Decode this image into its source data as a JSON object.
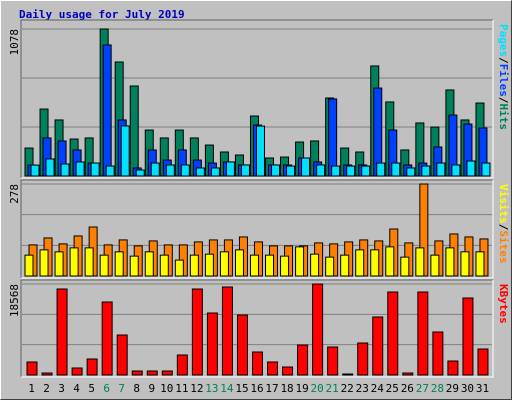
{
  "chart_data": {
    "type": "bar",
    "title": "Daily usage for July 2019",
    "categories": [
      "1",
      "2",
      "3",
      "4",
      "5",
      "6",
      "7",
      "8",
      "9",
      "10",
      "11",
      "12",
      "13",
      "14",
      "15",
      "16",
      "17",
      "18",
      "19",
      "20",
      "21",
      "22",
      "23",
      "24",
      "25",
      "26",
      "27",
      "28",
      "29",
      "30",
      "31"
    ],
    "category_colors": [
      "#000000",
      "#000000",
      "#000000",
      "#000000",
      "#000000",
      "#00805c",
      "#00805c",
      "#000000",
      "#000000",
      "#000000",
      "#000000",
      "#000000",
      "#00805c",
      "#00805c",
      "#000000",
      "#000000",
      "#000000",
      "#000000",
      "#000000",
      "#00805c",
      "#00805c",
      "#000000",
      "#000000",
      "#000000",
      "#000000",
      "#000000",
      "#00805c",
      "#00805c",
      "#000000",
      "#000000",
      "#000000"
    ],
    "legend_separator": "/",
    "panels": [
      {
        "ylim": [
          0,
          1078
        ],
        "yticks": [
          1078
        ],
        "series": [
          {
            "name": "Hits",
            "color": "#00805c",
            "values": [
              205,
              491,
              411,
              271,
              279,
              1078,
              836,
              660,
              337,
              279,
              337,
              279,
              227,
              176,
              154,
              440,
              132,
              139,
              249,
              257,
              572,
              205,
              176,
              807,
              543,
              191,
              389,
              359,
              631,
              411,
              535
            ]
          },
          {
            "name": "Files",
            "color": "#0040ff",
            "values": [
              80,
              279,
              257,
              191,
              95,
              961,
              411,
              59,
              191,
              117,
              191,
              117,
              95,
              103,
              81,
              374,
              81,
              81,
              132,
              103,
              565,
              81,
              81,
              645,
              337,
              81,
              95,
              213,
              447,
              381,
              352
            ]
          },
          {
            "name": "Pages",
            "color": "#00e0ff",
            "values": [
              80,
              125,
              88,
              103,
              95,
              73,
              367,
              44,
              95,
              81,
              81,
              59,
              59,
              103,
              81,
              366,
              81,
              73,
              132,
              81,
              73,
              73,
              73,
              95,
              95,
              59,
              73,
              95,
              81,
              110,
              95
            ]
          }
        ]
      },
      {
        "ylim": [
          0,
          278
        ],
        "yticks": [
          278
        ],
        "series": [
          {
            "name": "Sites",
            "color": "#ff8000",
            "values": [
              94,
              115,
              97,
              121,
              148,
              94,
              109,
              91,
              106,
              94,
              94,
              103,
              109,
              109,
              118,
              103,
              91,
              91,
              91,
              100,
              97,
              103,
              109,
              106,
              142,
              100,
              278,
              106,
              127,
              118,
              112
            ]
          },
          {
            "name": "Visits",
            "color": "#ffff00",
            "values": [
              63,
              79,
              73,
              85,
              85,
              63,
              73,
              60,
              73,
              63,
              48,
              63,
              66,
              73,
              79,
              63,
              63,
              60,
              88,
              66,
              57,
              63,
              79,
              79,
              88,
              57,
              85,
              63,
              85,
              73,
              73
            ]
          }
        ]
      },
      {
        "ylim": [
          0,
          18568
        ],
        "yticks": [
          18568
        ],
        "series": [
          {
            "name": "KBytes",
            "color": "#ff0000",
            "values": [
              2653,
              408,
              17548,
              1428,
              3265,
              14895,
              8162,
              816,
              816,
              816,
              4081,
              17548,
              12651,
              17956,
              12243,
              4693,
              2653,
              1632,
              6121,
              18568,
              5713,
              204,
              6530,
              11835,
              16936,
              408,
              16936,
              8774,
              2857,
              15712,
              5305
            ]
          }
        ]
      }
    ]
  }
}
